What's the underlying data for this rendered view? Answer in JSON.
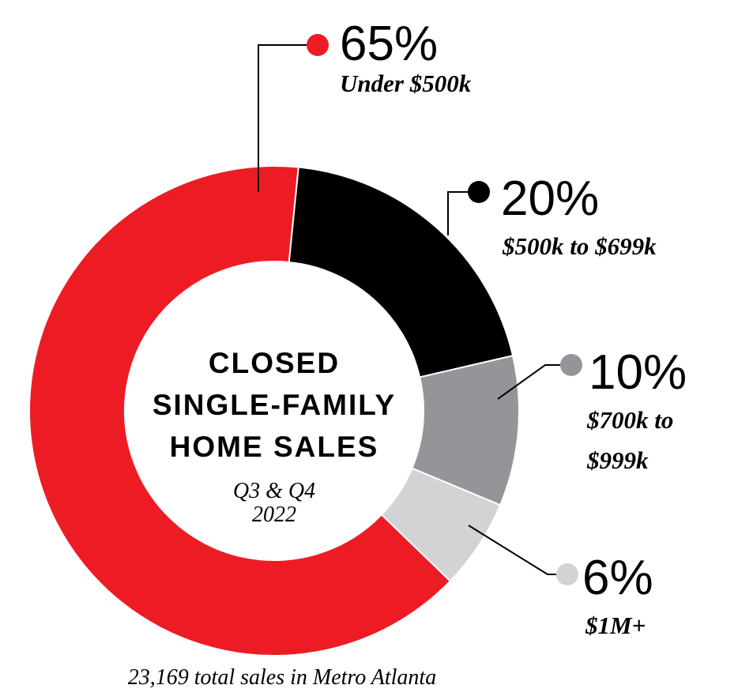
{
  "chart_data": {
    "type": "donut",
    "title_lines": [
      "CLOSED",
      "SINGLE-FAMILY",
      "HOME SALES"
    ],
    "subtitle_lines": [
      "Q3 & Q4",
      "2022"
    ],
    "footnote": "23,169 total sales in Metro Atlanta",
    "categories": [
      "Under $500k",
      "$500k to $699k",
      "$700k to $999k",
      "$1M+"
    ],
    "values": [
      65,
      20,
      10,
      6
    ],
    "value_labels": [
      "65%",
      "20%",
      "10%",
      "6%"
    ],
    "colors": [
      "#ed1c24",
      "#000000",
      "#939598",
      "#d1d3d4"
    ]
  }
}
